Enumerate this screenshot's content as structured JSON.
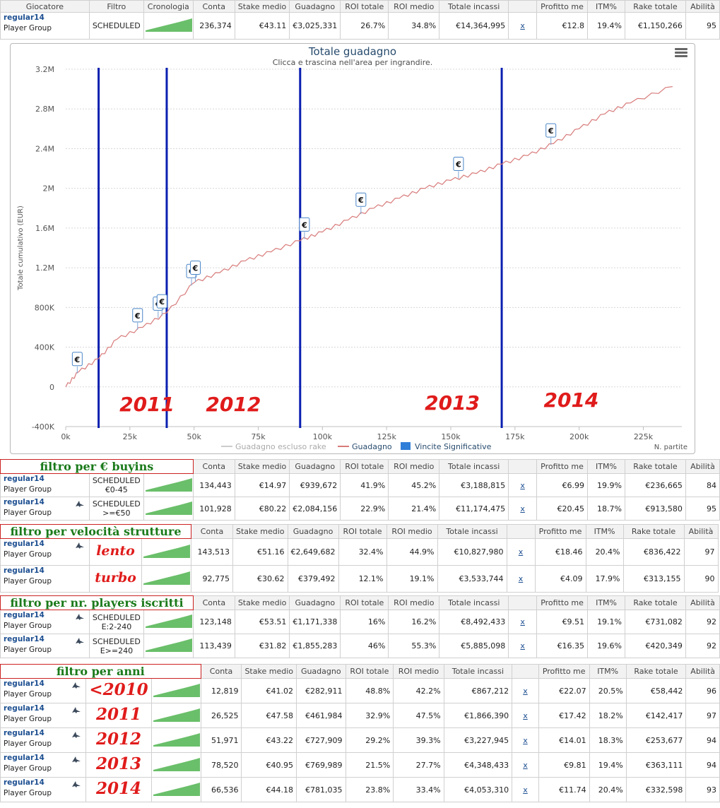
{
  "columns": [
    "Giocatore",
    "Filtro",
    "Cronologia",
    "Conta",
    "Stake medio",
    "Guadagno",
    "ROI totale",
    "ROI medio",
    "Totale incassi",
    "",
    "Profitto me",
    "ITM%",
    "Rake totale",
    "Abilità"
  ],
  "top_row": {
    "player": "regular14",
    "group": "Player Group",
    "filtro": "SCHEDULED",
    "conta": "236,374",
    "stake": "€43.11",
    "guadagno": "€3,025,331",
    "roi_tot": "26.7%",
    "roi_medio": "34.8%",
    "incassi": "€14,364,995",
    "x": "x",
    "profitto": "€12.8",
    "itm": "19.4%",
    "rake": "€1,150,266",
    "abilita": "95"
  },
  "chart": {
    "title": "Totale guadagno",
    "subtitle": "Clicca e trascina nell'area per ingrandire.",
    "ylabel": "Totale cumulativo (EUR)",
    "xlabel": "N. partite",
    "menu_icon": "hamburger-menu-icon",
    "legend": [
      "Guadagno escluso rake",
      "Guadagno",
      "Vincite Significative"
    ],
    "year_labels": [
      "2011",
      "2012",
      "2013",
      "2014"
    ],
    "marker_symbol": "€"
  },
  "chart_data": {
    "type": "line",
    "title": "Totale guadagno",
    "xlabel": "N. partite",
    "ylabel": "Totale cumulativo (EUR)",
    "xlim": [
      0,
      240000
    ],
    "ylim": [
      -400000,
      3200000
    ],
    "x_ticks": [
      "0k",
      "25k",
      "50k",
      "75k",
      "100k",
      "125k",
      "150k",
      "175k",
      "200k",
      "225k"
    ],
    "y_ticks": [
      "-400K",
      "0",
      "400K",
      "800K",
      "1.2M",
      "1.6M",
      "2M",
      "2.4M",
      "2.8M",
      "3.2M"
    ],
    "grid": true,
    "legend_position": "bottom",
    "series": [
      {
        "name": "Guadagno",
        "color": "#d87a7a",
        "x": [
          0,
          5000,
          12819,
          20000,
          30000,
          39344,
          50000,
          60000,
          70000,
          80000,
          91315,
          100000,
          110000,
          120000,
          130000,
          140000,
          150000,
          160000,
          169835,
          180000,
          190000,
          200000,
          210000,
          220000,
          236374
        ],
        "y": [
          0,
          150000,
          282911,
          480000,
          600000,
          744895,
          1050000,
          1150000,
          1270000,
          1360000,
          1472804,
          1560000,
          1680000,
          1800000,
          1900000,
          2000000,
          2080000,
          2150000,
          2242793,
          2330000,
          2450000,
          2600000,
          2750000,
          2860000,
          3025331
        ]
      },
      {
        "name": "Guadagno escluso rake",
        "color": "#cccccc",
        "x": [],
        "y": []
      }
    ],
    "vertical_lines": [
      12819,
      39344,
      91315,
      169835
    ],
    "significant_wins_x": [
      4500,
      28000,
      36000,
      37500,
      49000,
      50500,
      93000,
      115000,
      153000,
      189000
    ]
  },
  "sections": [
    {
      "title": "filtro per € buyins",
      "rows": [
        {
          "player": "regular14",
          "group": "Player Group",
          "filtro_lines": [
            "SCHEDULED",
            "€0-45"
          ],
          "shark": false,
          "conta": "134,443",
          "stake": "€14.97",
          "guadagno": "€939,672",
          "roi_tot": "41.9%",
          "roi_medio": "45.2%",
          "incassi": "€3,188,815",
          "x": "x",
          "profitto": "€6.99",
          "itm": "19.9%",
          "rake": "€236,665",
          "abilita": "84"
        },
        {
          "player": "regular14",
          "group": "Player Group",
          "filtro_lines": [
            "SCHEDULED",
            ">=€50"
          ],
          "shark": true,
          "conta": "101,928",
          "stake": "€80.22",
          "guadagno": "€2,084,156",
          "roi_tot": "22.9%",
          "roi_medio": "21.4%",
          "incassi": "€11,174,475",
          "x": "x",
          "profitto": "€20.45",
          "itm": "18.7%",
          "rake": "€913,580",
          "abilita": "95"
        }
      ]
    },
    {
      "title": "filtro per velocità strutture",
      "rows": [
        {
          "player": "regular14",
          "group": "Player Group",
          "big": "lento",
          "shark": true,
          "conta": "143,513",
          "stake": "€51.16",
          "guadagno": "€2,649,682",
          "roi_tot": "32.4%",
          "roi_medio": "44.9%",
          "incassi": "€10,827,980",
          "x": "x",
          "profitto": "€18.46",
          "itm": "20.4%",
          "rake": "€836,422",
          "abilita": "97"
        },
        {
          "player": "regular14",
          "group": "Player Group",
          "big": "turbo",
          "shark": false,
          "conta": "92,775",
          "stake": "€30.62",
          "guadagno": "€379,492",
          "roi_tot": "12.1%",
          "roi_medio": "19.1%",
          "incassi": "€3,533,744",
          "x": "x",
          "profitto": "€4.09",
          "itm": "17.9%",
          "rake": "€313,155",
          "abilita": "90"
        }
      ]
    },
    {
      "title": "filtro per nr. players iscritti",
      "rows": [
        {
          "player": "regular14",
          "group": "Player Group",
          "filtro_lines": [
            "SCHEDULED",
            "E:2-240"
          ],
          "shark": true,
          "conta": "123,148",
          "stake": "€53.51",
          "guadagno": "€1,171,338",
          "roi_tot": "16%",
          "roi_medio": "16.2%",
          "incassi": "€8,492,433",
          "x": "x",
          "profitto": "€9.51",
          "itm": "19.1%",
          "rake": "€731,082",
          "abilita": "92"
        },
        {
          "player": "regular14",
          "group": "Player Group",
          "filtro_lines": [
            "SCHEDULED",
            "E>=240"
          ],
          "shark": true,
          "conta": "113,439",
          "stake": "€31.82",
          "guadagno": "€1,855,283",
          "roi_tot": "46%",
          "roi_medio": "55.3%",
          "incassi": "€5,885,098",
          "x": "x",
          "profitto": "€16.35",
          "itm": "19.6%",
          "rake": "€420,349",
          "abilita": "92"
        }
      ]
    },
    {
      "title": "filtro per anni",
      "rows": [
        {
          "player": "regular14",
          "group": "Player Group",
          "big": "<2010",
          "year": true,
          "shark": true,
          "conta": "12,819",
          "stake": "€41.02",
          "guadagno": "€282,911",
          "roi_tot": "48.8%",
          "roi_medio": "42.2%",
          "incassi": "€867,212",
          "x": "x",
          "profitto": "€22.07",
          "itm": "20.5%",
          "rake": "€58,442",
          "abilita": "96"
        },
        {
          "player": "regular14",
          "group": "Player Group",
          "big": "2011",
          "year": true,
          "shark": true,
          "conta": "26,525",
          "stake": "€47.58",
          "guadagno": "€461,984",
          "roi_tot": "32.9%",
          "roi_medio": "47.5%",
          "incassi": "€1,866,390",
          "x": "x",
          "profitto": "€17.42",
          "itm": "18.2%",
          "rake": "€142,417",
          "abilita": "97"
        },
        {
          "player": "regular14",
          "group": "Player Group",
          "big": "2012",
          "year": true,
          "shark": true,
          "conta": "51,971",
          "stake": "€43.22",
          "guadagno": "€727,909",
          "roi_tot": "29.2%",
          "roi_medio": "39.3%",
          "incassi": "€3,227,945",
          "x": "x",
          "profitto": "€14.01",
          "itm": "18.3%",
          "rake": "€253,677",
          "abilita": "94"
        },
        {
          "player": "regular14",
          "group": "Player Group",
          "big": "2013",
          "year": true,
          "shark": true,
          "conta": "78,520",
          "stake": "€40.95",
          "guadagno": "€769,989",
          "roi_tot": "21.5%",
          "roi_medio": "27.7%",
          "incassi": "€4,348,433",
          "x": "x",
          "profitto": "€9.81",
          "itm": "19.4%",
          "rake": "€363,111",
          "abilita": "94"
        },
        {
          "player": "regular14",
          "group": "Player Group",
          "big": "2014",
          "year": true,
          "shark": true,
          "conta": "66,536",
          "stake": "€44.18",
          "guadagno": "€781,035",
          "roi_tot": "23.8%",
          "roi_medio": "33.4%",
          "incassi": "€4,053,310",
          "x": "x",
          "profitto": "€11.74",
          "itm": "20.4%",
          "rake": "€332,598",
          "abilita": "93"
        }
      ]
    }
  ]
}
